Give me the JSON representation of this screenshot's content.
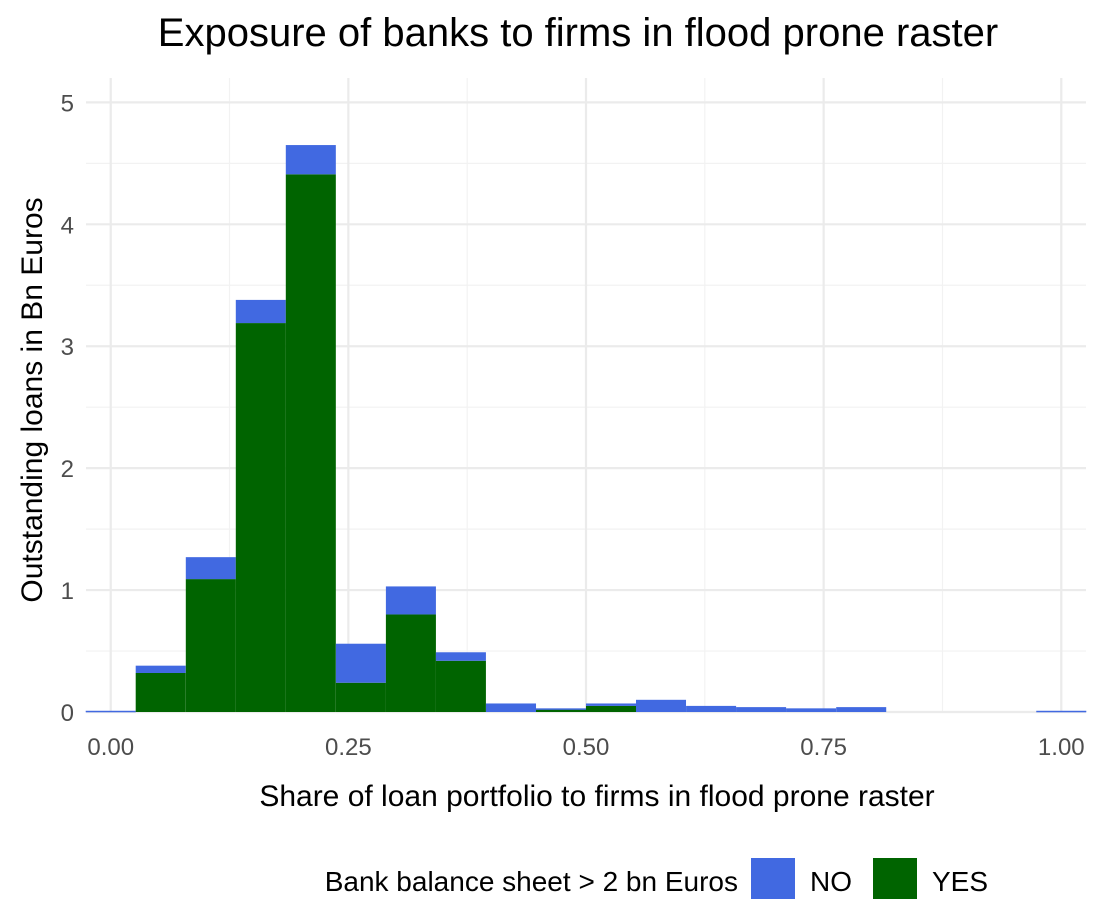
{
  "chart_data": {
    "type": "bar",
    "stacked": true,
    "title": "Exposure of banks to firms in flood prone raster",
    "xlabel": "Share of loan portfolio to firms in flood prone raster",
    "ylabel": "Outstanding loans in Bn Euros",
    "bin_width": 0.05263,
    "xlim": [
      -0.026,
      1.026
    ],
    "ylim": [
      0,
      5.2
    ],
    "x_ticks": [
      0.0,
      0.25,
      0.5,
      0.75,
      1.0
    ],
    "x_tick_labels": [
      "0.00",
      "0.25",
      "0.50",
      "0.75",
      "1.00"
    ],
    "y_ticks": [
      0,
      1,
      2,
      3,
      4,
      5
    ],
    "y_tick_labels": [
      "0",
      "1",
      "2",
      "3",
      "4",
      "5"
    ],
    "grid": true,
    "legend": {
      "title": "Bank balance sheet > 2 bn Euros",
      "position": "bottom",
      "entries": [
        {
          "label": "NO",
          "color": "#4169E1"
        },
        {
          "label": "YES",
          "color": "#006400"
        }
      ]
    },
    "bin_centers": [
      0.0,
      0.0526,
      0.1053,
      0.1579,
      0.2105,
      0.2632,
      0.3158,
      0.3684,
      0.4211,
      0.4737,
      0.5263,
      0.5789,
      0.6316,
      0.6842,
      0.7368,
      0.7895,
      0.8421,
      0.8947,
      0.9474,
      1.0
    ],
    "series": [
      {
        "name": "YES",
        "color": "#006400",
        "values": [
          0,
          0.32,
          1.09,
          3.19,
          4.41,
          0.24,
          0.8,
          0.42,
          0,
          0.02,
          0.05,
          0,
          0,
          0,
          0,
          0,
          0,
          0,
          0,
          0
        ]
      },
      {
        "name": "NO",
        "color": "#4169E1",
        "values": [
          0.01,
          0.06,
          0.18,
          0.19,
          0.24,
          0.32,
          0.23,
          0.07,
          0.07,
          0.01,
          0.02,
          0.1,
          0.05,
          0.04,
          0.03,
          0.04,
          0,
          0,
          0,
          0.01
        ]
      }
    ]
  }
}
